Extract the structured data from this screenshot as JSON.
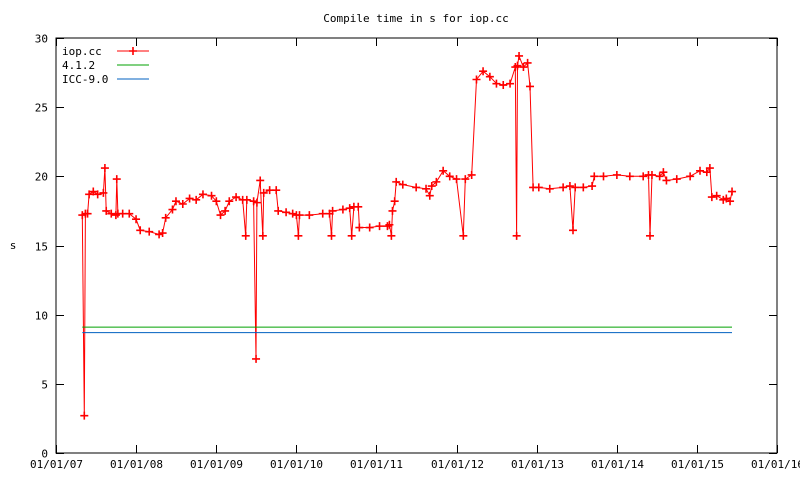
{
  "chart_data": {
    "type": "line",
    "title": "Compile time in s for iop.cc",
    "xlabel": "",
    "ylabel": "s",
    "ylim": [
      0,
      30
    ],
    "xlim": [
      "2007-01-01",
      "2016-01-01"
    ],
    "yticks": [
      "0",
      "5",
      "10",
      "15",
      "20",
      "25",
      "30"
    ],
    "xticks": [
      "01/01/07",
      "01/01/08",
      "01/01/09",
      "01/01/10",
      "01/01/11",
      "01/01/12",
      "01/01/13",
      "01/01/14",
      "01/01/15",
      "01/01/16"
    ],
    "grid": false,
    "legend_position": "top-left",
    "colors": {
      "iop": "#ff0000",
      "gcc": "#00a000",
      "icc": "#0060c0"
    },
    "series": [
      {
        "name": "iop.cc",
        "style": "linespoints",
        "points": [
          [
            "2007-05-01",
            17.2
          ],
          [
            "2007-05-10",
            2.7
          ],
          [
            "2007-05-15",
            17.3
          ],
          [
            "2007-05-25",
            17.3
          ],
          [
            "2007-06-01",
            18.7
          ],
          [
            "2007-06-20",
            18.9
          ],
          [
            "2007-07-10",
            18.7
          ],
          [
            "2007-08-05",
            18.8
          ],
          [
            "2007-08-12",
            20.6
          ],
          [
            "2007-08-18",
            17.5
          ],
          [
            "2007-09-10",
            17.3
          ],
          [
            "2007-10-01",
            17.2
          ],
          [
            "2007-10-05",
            19.8
          ],
          [
            "2007-10-10",
            17.3
          ],
          [
            "2007-11-01",
            17.3
          ],
          [
            "2007-12-01",
            17.3
          ],
          [
            "2008-01-01",
            16.9
          ],
          [
            "2008-01-20",
            16.1
          ],
          [
            "2008-03-01",
            16.0
          ],
          [
            "2008-04-15",
            15.8
          ],
          [
            "2008-05-01",
            15.9
          ],
          [
            "2008-05-15",
            17.0
          ],
          [
            "2008-06-15",
            17.6
          ],
          [
            "2008-07-01",
            18.2
          ],
          [
            "2008-08-01",
            18.0
          ],
          [
            "2008-09-01",
            18.4
          ],
          [
            "2008-10-01",
            18.3
          ],
          [
            "2008-11-01",
            18.7
          ],
          [
            "2008-12-10",
            18.6
          ],
          [
            "2009-01-01",
            18.2
          ],
          [
            "2009-01-20",
            17.2
          ],
          [
            "2009-02-10",
            17.5
          ],
          [
            "2009-03-01",
            18.2
          ],
          [
            "2009-04-01",
            18.5
          ],
          [
            "2009-05-01",
            18.3
          ],
          [
            "2009-05-15",
            15.7
          ],
          [
            "2009-05-20",
            18.3
          ],
          [
            "2009-06-20",
            18.2
          ],
          [
            "2009-07-01",
            6.8
          ],
          [
            "2009-07-05",
            18.1
          ],
          [
            "2009-07-20",
            19.7
          ],
          [
            "2009-08-01",
            15.7
          ],
          [
            "2009-08-05",
            18.8
          ],
          [
            "2009-09-01",
            19.0
          ],
          [
            "2009-10-01",
            19.0
          ],
          [
            "2009-10-10",
            17.5
          ],
          [
            "2009-11-15",
            17.4
          ],
          [
            "2009-12-15",
            17.3
          ],
          [
            "2010-01-01",
            17.2
          ],
          [
            "2010-01-10",
            15.7
          ],
          [
            "2010-01-15",
            17.2
          ],
          [
            "2010-03-01",
            17.2
          ],
          [
            "2010-05-01",
            17.3
          ],
          [
            "2010-06-01",
            17.3
          ],
          [
            "2010-06-10",
            15.7
          ],
          [
            "2010-06-15",
            17.5
          ],
          [
            "2010-08-01",
            17.6
          ],
          [
            "2010-09-01",
            17.7
          ],
          [
            "2010-09-10",
            15.7
          ],
          [
            "2010-09-20",
            17.8
          ],
          [
            "2010-10-10",
            17.8
          ],
          [
            "2010-10-15",
            16.3
          ],
          [
            "2010-12-01",
            16.3
          ],
          [
            "2011-01-15",
            16.4
          ],
          [
            "2011-02-20",
            16.4
          ],
          [
            "2011-03-01",
            16.5
          ],
          [
            "2011-03-10",
            15.7
          ],
          [
            "2011-03-15",
            17.5
          ],
          [
            "2011-03-25",
            18.2
          ],
          [
            "2011-04-01",
            19.6
          ],
          [
            "2011-05-01",
            19.4
          ],
          [
            "2011-07-01",
            19.2
          ],
          [
            "2011-08-15",
            19.1
          ],
          [
            "2011-09-01",
            18.6
          ],
          [
            "2011-09-10",
            19.3
          ],
          [
            "2011-10-01",
            19.6
          ],
          [
            "2011-11-01",
            20.4
          ],
          [
            "2011-12-01",
            20.0
          ],
          [
            "2012-01-01",
            19.8
          ],
          [
            "2012-02-01",
            15.7
          ],
          [
            "2012-02-10",
            19.8
          ],
          [
            "2012-03-10",
            20.1
          ],
          [
            "2012-04-01",
            27.0
          ],
          [
            "2012-05-01",
            27.6
          ],
          [
            "2012-06-01",
            27.2
          ],
          [
            "2012-07-01",
            26.7
          ],
          [
            "2012-08-01",
            26.6
          ],
          [
            "2012-09-01",
            26.7
          ],
          [
            "2012-09-25",
            27.9
          ],
          [
            "2012-10-01",
            15.7
          ],
          [
            "2012-10-05",
            28.0
          ],
          [
            "2012-10-12",
            28.7
          ],
          [
            "2012-11-01",
            27.9
          ],
          [
            "2012-11-20",
            28.2
          ],
          [
            "2012-12-01",
            26.5
          ],
          [
            "2012-12-15",
            19.2
          ],
          [
            "2013-01-10",
            19.2
          ],
          [
            "2013-03-01",
            19.1
          ],
          [
            "2013-05-01",
            19.2
          ],
          [
            "2013-06-01",
            19.3
          ],
          [
            "2013-06-15",
            16.1
          ],
          [
            "2013-06-25",
            19.2
          ],
          [
            "2013-08-01",
            19.2
          ],
          [
            "2013-09-10",
            19.3
          ],
          [
            "2013-09-20",
            20.0
          ],
          [
            "2013-11-01",
            20.0
          ],
          [
            "2014-01-01",
            20.1
          ],
          [
            "2014-03-01",
            20.0
          ],
          [
            "2014-05-01",
            20.0
          ],
          [
            "2014-05-25",
            20.1
          ],
          [
            "2014-06-01",
            15.7
          ],
          [
            "2014-06-10",
            20.1
          ],
          [
            "2014-07-15",
            20.0
          ],
          [
            "2014-08-01",
            20.3
          ],
          [
            "2014-08-15",
            19.7
          ],
          [
            "2014-10-01",
            19.8
          ],
          [
            "2014-12-01",
            20.0
          ],
          [
            "2015-01-15",
            20.4
          ],
          [
            "2015-02-15",
            20.3
          ],
          [
            "2015-03-01",
            20.6
          ],
          [
            "2015-03-10",
            18.5
          ],
          [
            "2015-04-01",
            18.6
          ],
          [
            "2015-05-01",
            18.3
          ],
          [
            "2015-05-15",
            18.4
          ],
          [
            "2015-06-01",
            18.2
          ],
          [
            "2015-06-10",
            18.9
          ]
        ]
      },
      {
        "name": "4.1.2",
        "style": "line",
        "points": [
          [
            "2007-05-01",
            9.1
          ],
          [
            "2015-06-10",
            9.1
          ]
        ]
      },
      {
        "name": "ICC-9.0",
        "style": "line",
        "points": [
          [
            "2007-05-01",
            8.7
          ],
          [
            "2015-06-10",
            8.7
          ]
        ]
      }
    ]
  }
}
